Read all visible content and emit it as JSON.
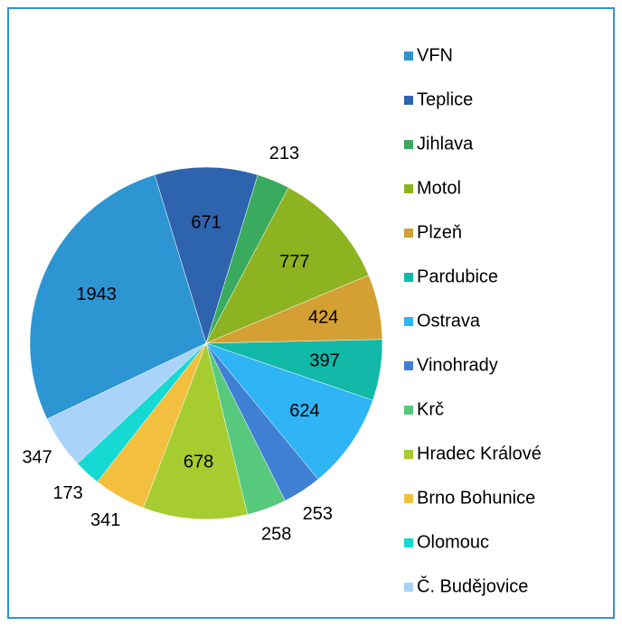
{
  "chart_data": {
    "type": "pie",
    "categories": [
      "VFN",
      "Teplice",
      "Jihlava",
      "Motol",
      "Plzeň",
      "Pardubice",
      "Ostrava",
      "Vinohrady",
      "Krč",
      "Hradec Králové",
      "Brno Bohunice",
      "Olomouc",
      "Č. Budějovice"
    ],
    "values": [
      1943,
      671,
      213,
      777,
      424,
      397,
      624,
      253,
      258,
      678,
      341,
      173,
      347
    ],
    "colors": [
      "#2e95d3",
      "#2e64ad",
      "#3aab5e",
      "#8db321",
      "#d4a033",
      "#12b8a8",
      "#2fb4f5",
      "#3f7fd4",
      "#57c97c",
      "#a6cc2f",
      "#f2bf3e",
      "#16d9d3",
      "#a9d3f8"
    ],
    "legend": "right"
  }
}
